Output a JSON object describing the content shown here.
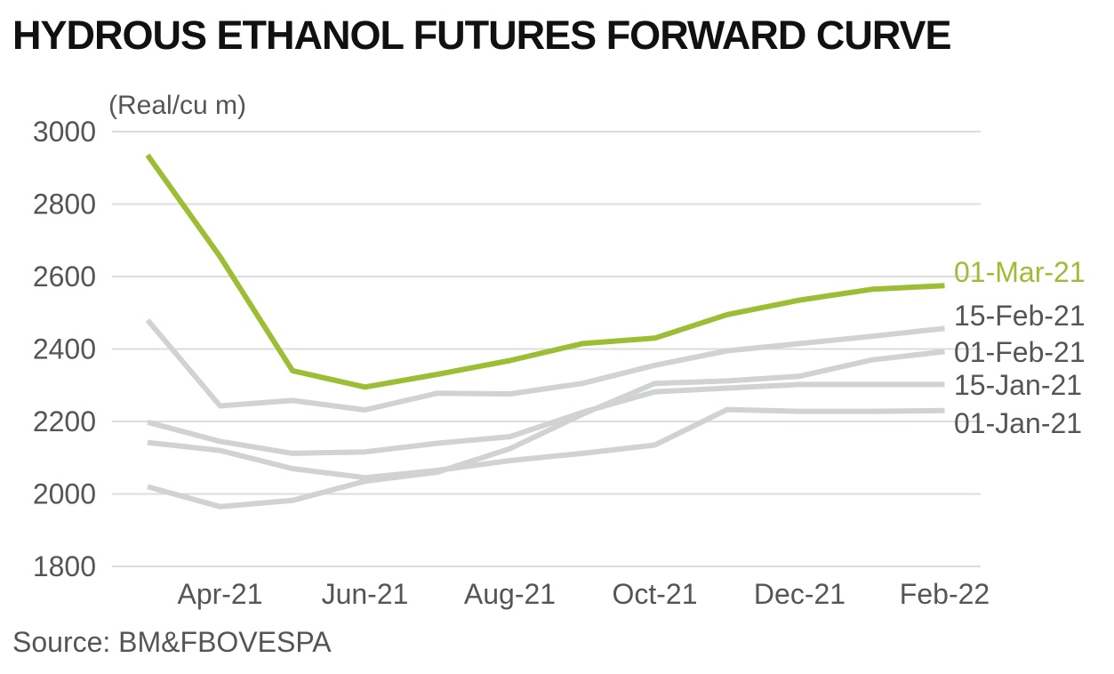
{
  "title": "HYDROUS ETHANOL FUTURES FORWARD CURVE",
  "source": "Source: BM&FBOVESPA",
  "chart_data": {
    "type": "line",
    "ylabel": "(Real/cu m)",
    "ylim": [
      1800,
      3000
    ],
    "yticks": [
      1800,
      2000,
      2200,
      2400,
      2600,
      2800,
      3000
    ],
    "x_dates": [
      "Mar-21",
      "Apr-21",
      "May-21",
      "Jun-21",
      "Jul-21",
      "Aug-21",
      "Sep-21",
      "Oct-21",
      "Nov-21",
      "Dec-21",
      "Jan-22",
      "Feb-22"
    ],
    "x_tick_labels": [
      "Apr-21",
      "Jun-21",
      "Aug-21",
      "Oct-21",
      "Dec-21",
      "Feb-22"
    ],
    "grid": true,
    "series": [
      {
        "name": "01-Mar-21",
        "color": "#9cbd34",
        "values": [
          2935,
          2655,
          2340,
          2295,
          2330,
          2368,
          2415,
          2430,
          2495,
          2535,
          2565,
          2575
        ]
      },
      {
        "name": "15-Feb-21",
        "color": "#d0d2d3",
        "values": [
          2480,
          2243,
          2258,
          2232,
          2278,
          2276,
          2305,
          2355,
          2395,
          2415,
          2435,
          2457
        ]
      },
      {
        "name": "01-Feb-21",
        "color": "#d0d2d3",
        "values": [
          2020,
          1965,
          1982,
          2035,
          2060,
          2125,
          2220,
          2305,
          2312,
          2325,
          2370,
          2393
        ]
      },
      {
        "name": "15-Jan-21",
        "color": "#d0d2d3",
        "values": [
          2198,
          2145,
          2112,
          2116,
          2140,
          2158,
          2225,
          2282,
          2292,
          2302,
          2302,
          2302
        ]
      },
      {
        "name": "01-Jan-21",
        "color": "#d0d2d3",
        "values": [
          2142,
          2120,
          2070,
          2045,
          2065,
          2092,
          2112,
          2135,
          2233,
          2228,
          2228,
          2230
        ]
      }
    ]
  }
}
